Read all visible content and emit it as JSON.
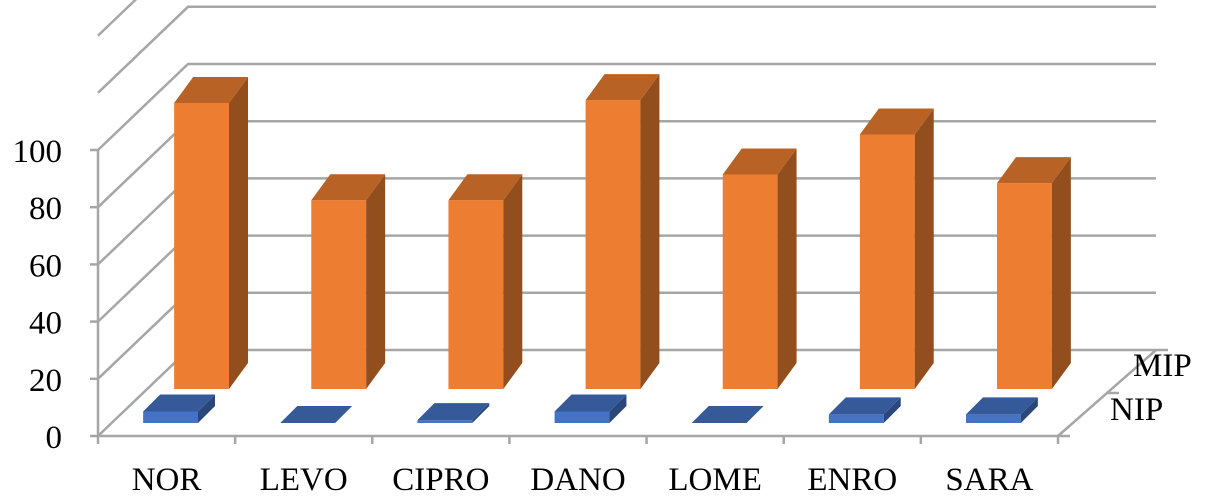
{
  "chart_data": {
    "type": "bar",
    "chart_style": "3d-column",
    "categories": [
      "NOR",
      "LEVO",
      "CIPRO",
      "DANO",
      "LOME",
      "ENRO",
      "SARA"
    ],
    "series": [
      {
        "name": "NIP",
        "values": [
          4,
          0,
          1,
          4,
          0,
          3,
          3
        ],
        "color": "#4472c4"
      },
      {
        "name": "MIP",
        "values": [
          100,
          66,
          66,
          101,
          75,
          89,
          72
        ],
        "color": "#ed7d31"
      }
    ],
    "y_ticks": [
      "0",
      "20",
      "40",
      "60",
      "80",
      "100"
    ],
    "ylim": [
      0,
      100
    ],
    "grid": true,
    "legend": "none",
    "depth_labels": [
      "NIP",
      "MIP"
    ],
    "title": "",
    "xlabel": "",
    "ylabel": ""
  }
}
